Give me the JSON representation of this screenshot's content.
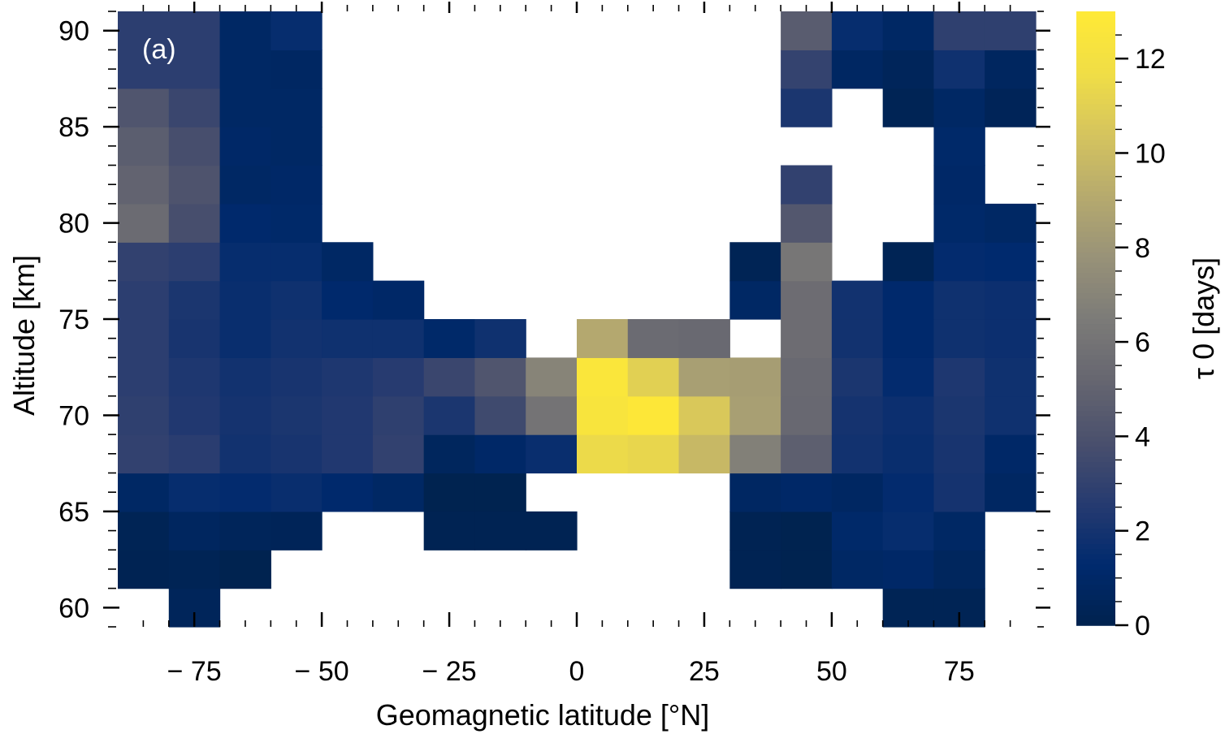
{
  "chart_data": {
    "type": "heatmap",
    "panel_label": "(a)",
    "xlabel": "Geomagnetic latitude [°N]",
    "ylabel": "Altitude [km]",
    "colorbar_label": "τ 0 [days]",
    "xlim": [
      -90,
      90
    ],
    "ylim": [
      59,
      91
    ],
    "x_ticks": [
      -75,
      -50,
      -25,
      0,
      25,
      50,
      75
    ],
    "x_tick_labels": [
      "− 75",
      "− 50",
      "− 25",
      "0",
      "25",
      "50",
      "75"
    ],
    "y_ticks": [
      60,
      65,
      70,
      75,
      80,
      85,
      90
    ],
    "y_tick_labels": [
      "60",
      "65",
      "70",
      "75",
      "80",
      "85",
      "90"
    ],
    "colorbar_range": [
      0,
      13
    ],
    "colorbar_ticks": [
      0,
      2,
      4,
      6,
      8,
      10,
      12
    ],
    "colorbar_tick_labels": [
      "0",
      "2",
      "4",
      "6",
      "8",
      "10",
      "12"
    ],
    "colormap": "cividis",
    "lat_bin_edges": [
      -90,
      -80,
      -70,
      -60,
      -50,
      -40,
      -30,
      -20,
      -10,
      0,
      10,
      20,
      30,
      40,
      50,
      60,
      70,
      80,
      90
    ],
    "alt_bin_edges": [
      59,
      61,
      63,
      65,
      67,
      69,
      71,
      73,
      75,
      77,
      79,
      81,
      83,
      85,
      87,
      89,
      91
    ],
    "values_by_altitude_row": [
      [
        null,
        0.5,
        null,
        null,
        null,
        null,
        null,
        null,
        null,
        null,
        null,
        null,
        null,
        null,
        null,
        0.3,
        0.3,
        null
      ],
      [
        0.2,
        0.3,
        0.1,
        null,
        null,
        null,
        null,
        null,
        null,
        null,
        null,
        null,
        0.2,
        0.1,
        0.9,
        1.0,
        0.6,
        null
      ],
      [
        0.3,
        0.7,
        0.5,
        0.4,
        null,
        null,
        0.2,
        0.2,
        0.2,
        null,
        null,
        null,
        0.2,
        0.1,
        1.1,
        1.5,
        0.9,
        null
      ],
      [
        0.9,
        1.5,
        1.4,
        1.6,
        1.2,
        0.9,
        0.1,
        0.1,
        null,
        null,
        null,
        null,
        0.8,
        1.0,
        0.8,
        1.4,
        2.0,
        0.8
      ],
      [
        3.0,
        2.7,
        1.9,
        2.1,
        2.4,
        3.0,
        0.6,
        1.0,
        1.6,
        11.5,
        11.3,
        9.8,
        6.8,
        4.8,
        1.9,
        1.6,
        2.1,
        1.0
      ],
      [
        2.9,
        2.4,
        2.0,
        2.2,
        2.4,
        2.9,
        2.2,
        3.5,
        6.0,
        12.4,
        12.8,
        10.6,
        8.5,
        5.3,
        2.0,
        1.7,
        2.2,
        1.8
      ],
      [
        2.8,
        2.3,
        1.9,
        2.1,
        2.3,
        2.6,
        3.3,
        4.2,
        7.0,
        12.6,
        11.0,
        8.5,
        8.4,
        5.4,
        2.2,
        1.4,
        2.3,
        1.8
      ],
      [
        2.8,
        2.1,
        1.6,
        1.9,
        1.8,
        1.8,
        1.1,
        1.8,
        null,
        9.0,
        5.5,
        5.4,
        null,
        5.6,
        1.9,
        1.2,
        1.8,
        1.7
      ],
      [
        2.8,
        2.2,
        1.6,
        1.8,
        1.2,
        1.0,
        null,
        null,
        null,
        null,
        null,
        null,
        0.9,
        5.6,
        1.9,
        1.2,
        1.8,
        1.7
      ],
      [
        3.0,
        2.8,
        1.5,
        1.5,
        0.9,
        null,
        null,
        null,
        null,
        null,
        null,
        null,
        0.3,
        6.2,
        null,
        0.3,
        1.4,
        1.3
      ],
      [
        5.5,
        3.8,
        1.2,
        1.1,
        null,
        null,
        null,
        null,
        null,
        null,
        null,
        null,
        null,
        4.3,
        null,
        null,
        1.1,
        0.9
      ],
      [
        5.0,
        4.1,
        0.9,
        1.0,
        null,
        null,
        null,
        null,
        null,
        null,
        null,
        null,
        null,
        3.0,
        null,
        null,
        1.0,
        null
      ],
      [
        4.7,
        3.8,
        1.0,
        0.9,
        null,
        null,
        null,
        null,
        null,
        null,
        null,
        null,
        null,
        null,
        null,
        null,
        1.1,
        null
      ],
      [
        4.2,
        3.3,
        0.9,
        0.9,
        null,
        null,
        null,
        null,
        null,
        null,
        null,
        null,
        null,
        2.2,
        null,
        0.3,
        0.9,
        0.4
      ],
      [
        2.8,
        2.8,
        0.9,
        0.8,
        null,
        null,
        null,
        null,
        null,
        null,
        null,
        null,
        null,
        3.1,
        0.8,
        0.5,
        1.8,
        0.7
      ],
      [
        2.8,
        2.8,
        0.9,
        1.5,
        null,
        null,
        null,
        null,
        null,
        null,
        null,
        null,
        null,
        4.6,
        1.5,
        0.9,
        2.9,
        2.9
      ]
    ]
  }
}
